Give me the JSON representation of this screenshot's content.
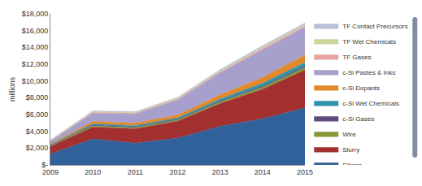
{
  "chart_data": {
    "type": "area",
    "stacked": true,
    "y_label": "millions",
    "x": [
      2009,
      2010,
      2011,
      2012,
      2013,
      2014,
      2015
    ],
    "xlim": [
      2009,
      2015
    ],
    "xticks": [
      2009,
      2010,
      2011,
      2012,
      2013,
      2014,
      2015
    ],
    "ylim": [
      0,
      18000
    ],
    "yticks": [
      {
        "value": 0,
        "label": "$-"
      },
      {
        "value": 2000,
        "label": "$2,000"
      },
      {
        "value": 4000,
        "label": "$4,000"
      },
      {
        "value": 6000,
        "label": "$6,000"
      },
      {
        "value": 8000,
        "label": "$8,000"
      },
      {
        "value": 10000,
        "label": "$10,000"
      },
      {
        "value": 12000,
        "label": "$12,000"
      },
      {
        "value": 14000,
        "label": "$14,000"
      },
      {
        "value": 16000,
        "label": "$16,000"
      },
      {
        "value": 18000,
        "label": "$18,000"
      }
    ],
    "grid": false,
    "legend": "right",
    "series": [
      {
        "name": "Silicon",
        "color": "#30619a",
        "values": [
          1300,
          3100,
          2600,
          3200,
          4600,
          5500,
          6800
        ]
      },
      {
        "name": "Slurry",
        "color": "#a3302e",
        "values": [
          900,
          1400,
          1700,
          2000,
          2700,
          3500,
          4500
        ]
      },
      {
        "name": "Wire",
        "color": "#869a3a",
        "values": [
          100,
          150,
          150,
          150,
          200,
          250,
          300
        ]
      },
      {
        "name": "c-Si Gases",
        "color": "#5f4b80",
        "values": [
          50,
          80,
          80,
          100,
          100,
          120,
          150
        ]
      },
      {
        "name": "c-Si Wet Chemicals",
        "color": "#2f93ab",
        "values": [
          50,
          150,
          150,
          150,
          250,
          350,
          450
        ]
      },
      {
        "name": "c-Si Dopants",
        "color": "#e28a2b",
        "values": [
          100,
          300,
          300,
          350,
          500,
          700,
          900
        ]
      },
      {
        "name": "c-Si Pastes & Inks",
        "color": "#a8a0cc",
        "values": [
          300,
          1000,
          1100,
          1800,
          2600,
          3300,
          3300
        ]
      },
      {
        "name": "TF Gases",
        "color": "#e6a3a1",
        "values": [
          50,
          80,
          80,
          100,
          120,
          150,
          150
        ]
      },
      {
        "name": "TF Wet Chemicals",
        "color": "#cdd59c",
        "values": [
          50,
          80,
          80,
          100,
          120,
          150,
          150
        ]
      },
      {
        "name": "TF Contact Precursors",
        "color": "#b9c0d8",
        "values": [
          50,
          100,
          100,
          100,
          150,
          180,
          200
        ]
      }
    ]
  }
}
